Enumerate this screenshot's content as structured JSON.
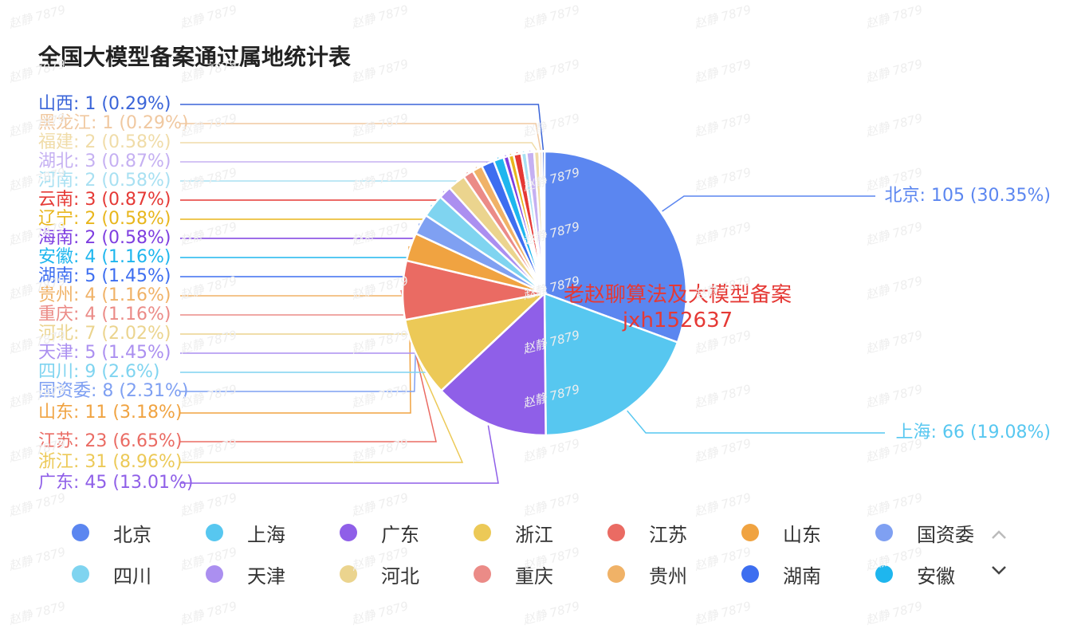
{
  "title": "全国大模型备案通过属地统计表",
  "overlay": {
    "line1": "老赵聊算法及大模型备案",
    "line2": "jxh152637"
  },
  "watermark_text": "赵静 7879",
  "chart_data": {
    "type": "pie",
    "title": "全国大模型备案通过属地统计表",
    "slices": [
      {
        "name": "北京",
        "value": 105,
        "pct": "30.35%",
        "color": "#5b86f0"
      },
      {
        "name": "上海",
        "value": 66,
        "pct": "19.08%",
        "color": "#57c7f0"
      },
      {
        "name": "广东",
        "value": 45,
        "pct": "13.01%",
        "color": "#8f5fe8"
      },
      {
        "name": "浙江",
        "value": 31,
        "pct": "8.96%",
        "color": "#ecc957"
      },
      {
        "name": "江苏",
        "value": 23,
        "pct": "6.65%",
        "color": "#ea6b63"
      },
      {
        "name": "山东",
        "value": 11,
        "pct": "3.18%",
        "color": "#f0a341"
      },
      {
        "name": "国资委",
        "value": 8,
        "pct": "2.31%",
        "color": "#7fa0f2"
      },
      {
        "name": "四川",
        "value": 9,
        "pct": "2.6%",
        "color": "#7fd4f0"
      },
      {
        "name": "天津",
        "value": 5,
        "pct": "1.45%",
        "color": "#ab8ff0"
      },
      {
        "name": "河北",
        "value": 7,
        "pct": "2.02%",
        "color": "#ebd48e"
      },
      {
        "name": "重庆",
        "value": 4,
        "pct": "1.16%",
        "color": "#eb8b87"
      },
      {
        "name": "贵州",
        "value": 4,
        "pct": "1.16%",
        "color": "#f0b267"
      },
      {
        "name": "湖南",
        "value": 5,
        "pct": "1.45%",
        "color": "#3d6ef0"
      },
      {
        "name": "安徽",
        "value": 4,
        "pct": "1.16%",
        "color": "#1eb6ee"
      },
      {
        "name": "海南",
        "value": 2,
        "pct": "0.58%",
        "color": "#7e3ee0"
      },
      {
        "name": "辽宁",
        "value": 2,
        "pct": "0.58%",
        "color": "#e8b61c"
      },
      {
        "name": "云南",
        "value": 3,
        "pct": "0.87%",
        "color": "#e53935"
      },
      {
        "name": "河南",
        "value": 2,
        "pct": "0.58%",
        "color": "#a8e0f2"
      },
      {
        "name": "湖北",
        "value": 3,
        "pct": "0.87%",
        "color": "#c5b0f2"
      },
      {
        "name": "福建",
        "value": 2,
        "pct": "0.58%",
        "color": "#f0dca8"
      },
      {
        "name": "黑龙江",
        "value": 1,
        "pct": "0.29%",
        "color": "#f0c8a0"
      },
      {
        "name": "山西",
        "value": 1,
        "pct": "0.29%",
        "color": "#3a64d8"
      }
    ]
  },
  "legend": {
    "items": [
      "北京",
      "上海",
      "广东",
      "浙江",
      "江苏",
      "山东",
      "国资委",
      "四川",
      "天津",
      "河北",
      "重庆",
      "贵州",
      "湖南",
      "安徽"
    ],
    "colors": [
      "#5b86f0",
      "#57c7f0",
      "#8f5fe8",
      "#ecc957",
      "#ea6b63",
      "#f0a341",
      "#7fa0f2",
      "#7fd4f0",
      "#ab8ff0",
      "#ebd48e",
      "#eb8b87",
      "#f0b267",
      "#3d6ef0",
      "#1eb6ee"
    ],
    "pager_up_icon": "chevron-up-icon",
    "pager_down_icon": "chevron-down-icon"
  }
}
